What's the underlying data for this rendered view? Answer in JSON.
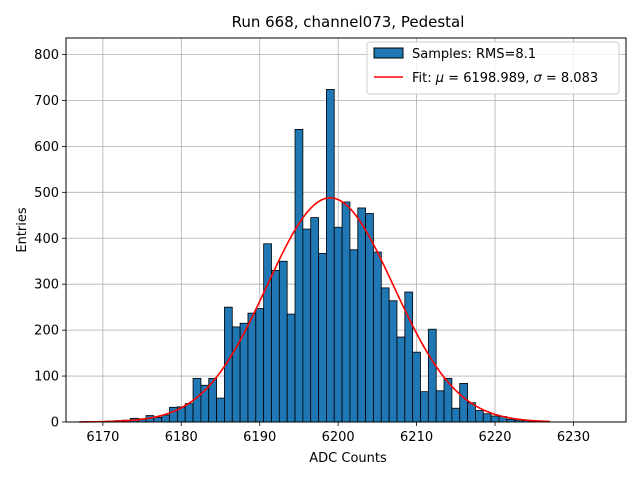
{
  "chart_data": {
    "type": "bar",
    "title": "Run 668, channel073, Pedestal",
    "xlabel": "ADC Counts",
    "ylabel": "Entries",
    "xlim": [
      6165.3,
      6236.7
    ],
    "ylim": [
      0,
      836
    ],
    "xticks": [
      6170,
      6180,
      6190,
      6200,
      6210,
      6220,
      6230
    ],
    "yticks": [
      0,
      100,
      200,
      300,
      400,
      500,
      600,
      700,
      800
    ],
    "grid": true,
    "legend_position": "top-right",
    "colors": {
      "bars": "#1f77b4",
      "bar_edge": "#000000",
      "fit": "#ff0000",
      "grid": "#b0b0b0"
    },
    "histogram": {
      "name": "Samples: RMS=8.1",
      "bin_width": 1,
      "bins": [
        {
          "x": 6168,
          "y": 1
        },
        {
          "x": 6169,
          "y": 1
        },
        {
          "x": 6170,
          "y": 1
        },
        {
          "x": 6171,
          "y": 2
        },
        {
          "x": 6172,
          "y": 3
        },
        {
          "x": 6173,
          "y": 4
        },
        {
          "x": 6174,
          "y": 8
        },
        {
          "x": 6175,
          "y": 7
        },
        {
          "x": 6176,
          "y": 14
        },
        {
          "x": 6177,
          "y": 10
        },
        {
          "x": 6178,
          "y": 15
        },
        {
          "x": 6179,
          "y": 32
        },
        {
          "x": 6180,
          "y": 33
        },
        {
          "x": 6181,
          "y": 40
        },
        {
          "x": 6182,
          "y": 95
        },
        {
          "x": 6183,
          "y": 80
        },
        {
          "x": 6184,
          "y": 95
        },
        {
          "x": 6185,
          "y": 52
        },
        {
          "x": 6186,
          "y": 250
        },
        {
          "x": 6187,
          "y": 207
        },
        {
          "x": 6188,
          "y": 215
        },
        {
          "x": 6189,
          "y": 237
        },
        {
          "x": 6190,
          "y": 247
        },
        {
          "x": 6191,
          "y": 388
        },
        {
          "x": 6192,
          "y": 330
        },
        {
          "x": 6193,
          "y": 350
        },
        {
          "x": 6194,
          "y": 235
        },
        {
          "x": 6195,
          "y": 637
        },
        {
          "x": 6196,
          "y": 420
        },
        {
          "x": 6197,
          "y": 445
        },
        {
          "x": 6198,
          "y": 367
        },
        {
          "x": 6199,
          "y": 724
        },
        {
          "x": 6200,
          "y": 424
        },
        {
          "x": 6201,
          "y": 479
        },
        {
          "x": 6202,
          "y": 375
        },
        {
          "x": 6203,
          "y": 466
        },
        {
          "x": 6204,
          "y": 454
        },
        {
          "x": 6205,
          "y": 370
        },
        {
          "x": 6206,
          "y": 292
        },
        {
          "x": 6207,
          "y": 264
        },
        {
          "x": 6208,
          "y": 185
        },
        {
          "x": 6209,
          "y": 283
        },
        {
          "x": 6210,
          "y": 152
        },
        {
          "x": 6211,
          "y": 66
        },
        {
          "x": 6212,
          "y": 202
        },
        {
          "x": 6213,
          "y": 68
        },
        {
          "x": 6214,
          "y": 95
        },
        {
          "x": 6215,
          "y": 30
        },
        {
          "x": 6216,
          "y": 84
        },
        {
          "x": 6217,
          "y": 42
        },
        {
          "x": 6218,
          "y": 25
        },
        {
          "x": 6219,
          "y": 18
        },
        {
          "x": 6220,
          "y": 13
        },
        {
          "x": 6221,
          "y": 12
        },
        {
          "x": 6222,
          "y": 6
        },
        {
          "x": 6223,
          "y": 4
        },
        {
          "x": 6224,
          "y": 3
        },
        {
          "x": 6225,
          "y": 2
        },
        {
          "x": 6226,
          "y": 1
        }
      ]
    },
    "fit": {
      "name": "Fit: μ = 6198.989, σ = 8.083",
      "mu": 6198.989,
      "sigma": 8.083,
      "amplitude": 488,
      "x_range": [
        6167,
        6227
      ]
    },
    "legend": [
      {
        "label_prefix": "Samples: RMS=8.1",
        "kind": "patch"
      },
      {
        "label_prefix": "Fit: ",
        "mu_symbol": "μ",
        "mu_text": " = 6198.989, ",
        "sigma_symbol": "σ",
        "sigma_text": " = 8.083",
        "kind": "line"
      }
    ]
  }
}
